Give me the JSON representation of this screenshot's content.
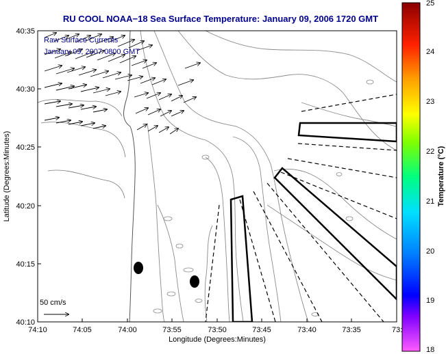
{
  "title": "RU COOL  NOAA−18  Sea Surface Temperature:  January 09, 2006 1720 GMT",
  "overlay": {
    "line1": "Raw Surface Currents",
    "line2": "January 09, 2007 0800 GMT"
  },
  "axes": {
    "xlabel": "Longitude (Degrees:Minutes)",
    "ylabel": "Latitude (Degrees:Minutes)",
    "xticks": [
      "74:10",
      "74:05",
      "74:00",
      "73:55",
      "73:50",
      "73:45",
      "73:40",
      "73:35",
      "73:3"
    ],
    "yticks": [
      "40:35",
      "40:30",
      "40:25",
      "40:20",
      "40:15",
      "40:10"
    ]
  },
  "scale": {
    "label": "50 cm/s"
  },
  "colorbar": {
    "label": "Temperature (°C)",
    "ticks": [
      "25",
      "24",
      "23",
      "22",
      "21",
      "20",
      "19",
      "18"
    ]
  },
  "colors": {
    "title": "#00008b",
    "contour": "#808080",
    "vector": "#000000",
    "frame": "#000000"
  }
}
